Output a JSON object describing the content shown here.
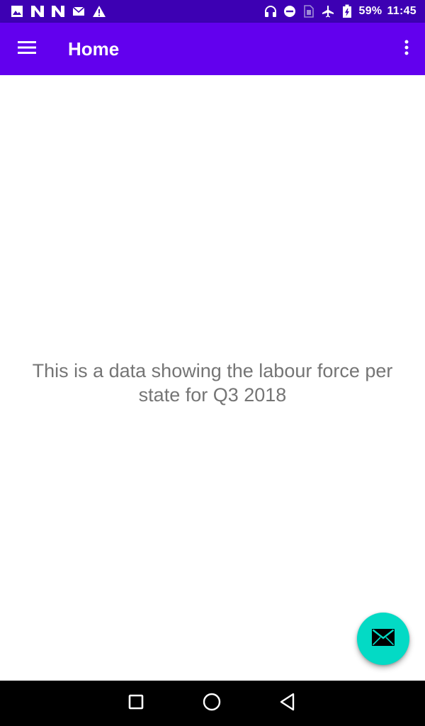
{
  "status_bar": {
    "battery_percent": "59%",
    "time": "11:45",
    "left_icons": [
      "image-icon",
      "n-icon",
      "n-icon",
      "mail-icon",
      "warning-icon"
    ],
    "right_icons": [
      "headphones-icon",
      "dnd-icon",
      "sim-icon",
      "airplane-icon",
      "battery-icon"
    ]
  },
  "app_bar": {
    "title": "Home",
    "menu_icon": "hamburger-menu-icon",
    "overflow_icon": "more-vert-icon"
  },
  "content": {
    "message": "This is a data showing the labour force per state for Q3 2018"
  },
  "fab": {
    "icon": "email-icon"
  },
  "nav_bar": {
    "buttons": [
      "recents",
      "home",
      "back"
    ]
  },
  "colors": {
    "status_bar": "#3d00b3",
    "app_bar": "#6200ee",
    "fab": "#03dac5",
    "text": "#757575",
    "nav_bar": "#000000"
  }
}
